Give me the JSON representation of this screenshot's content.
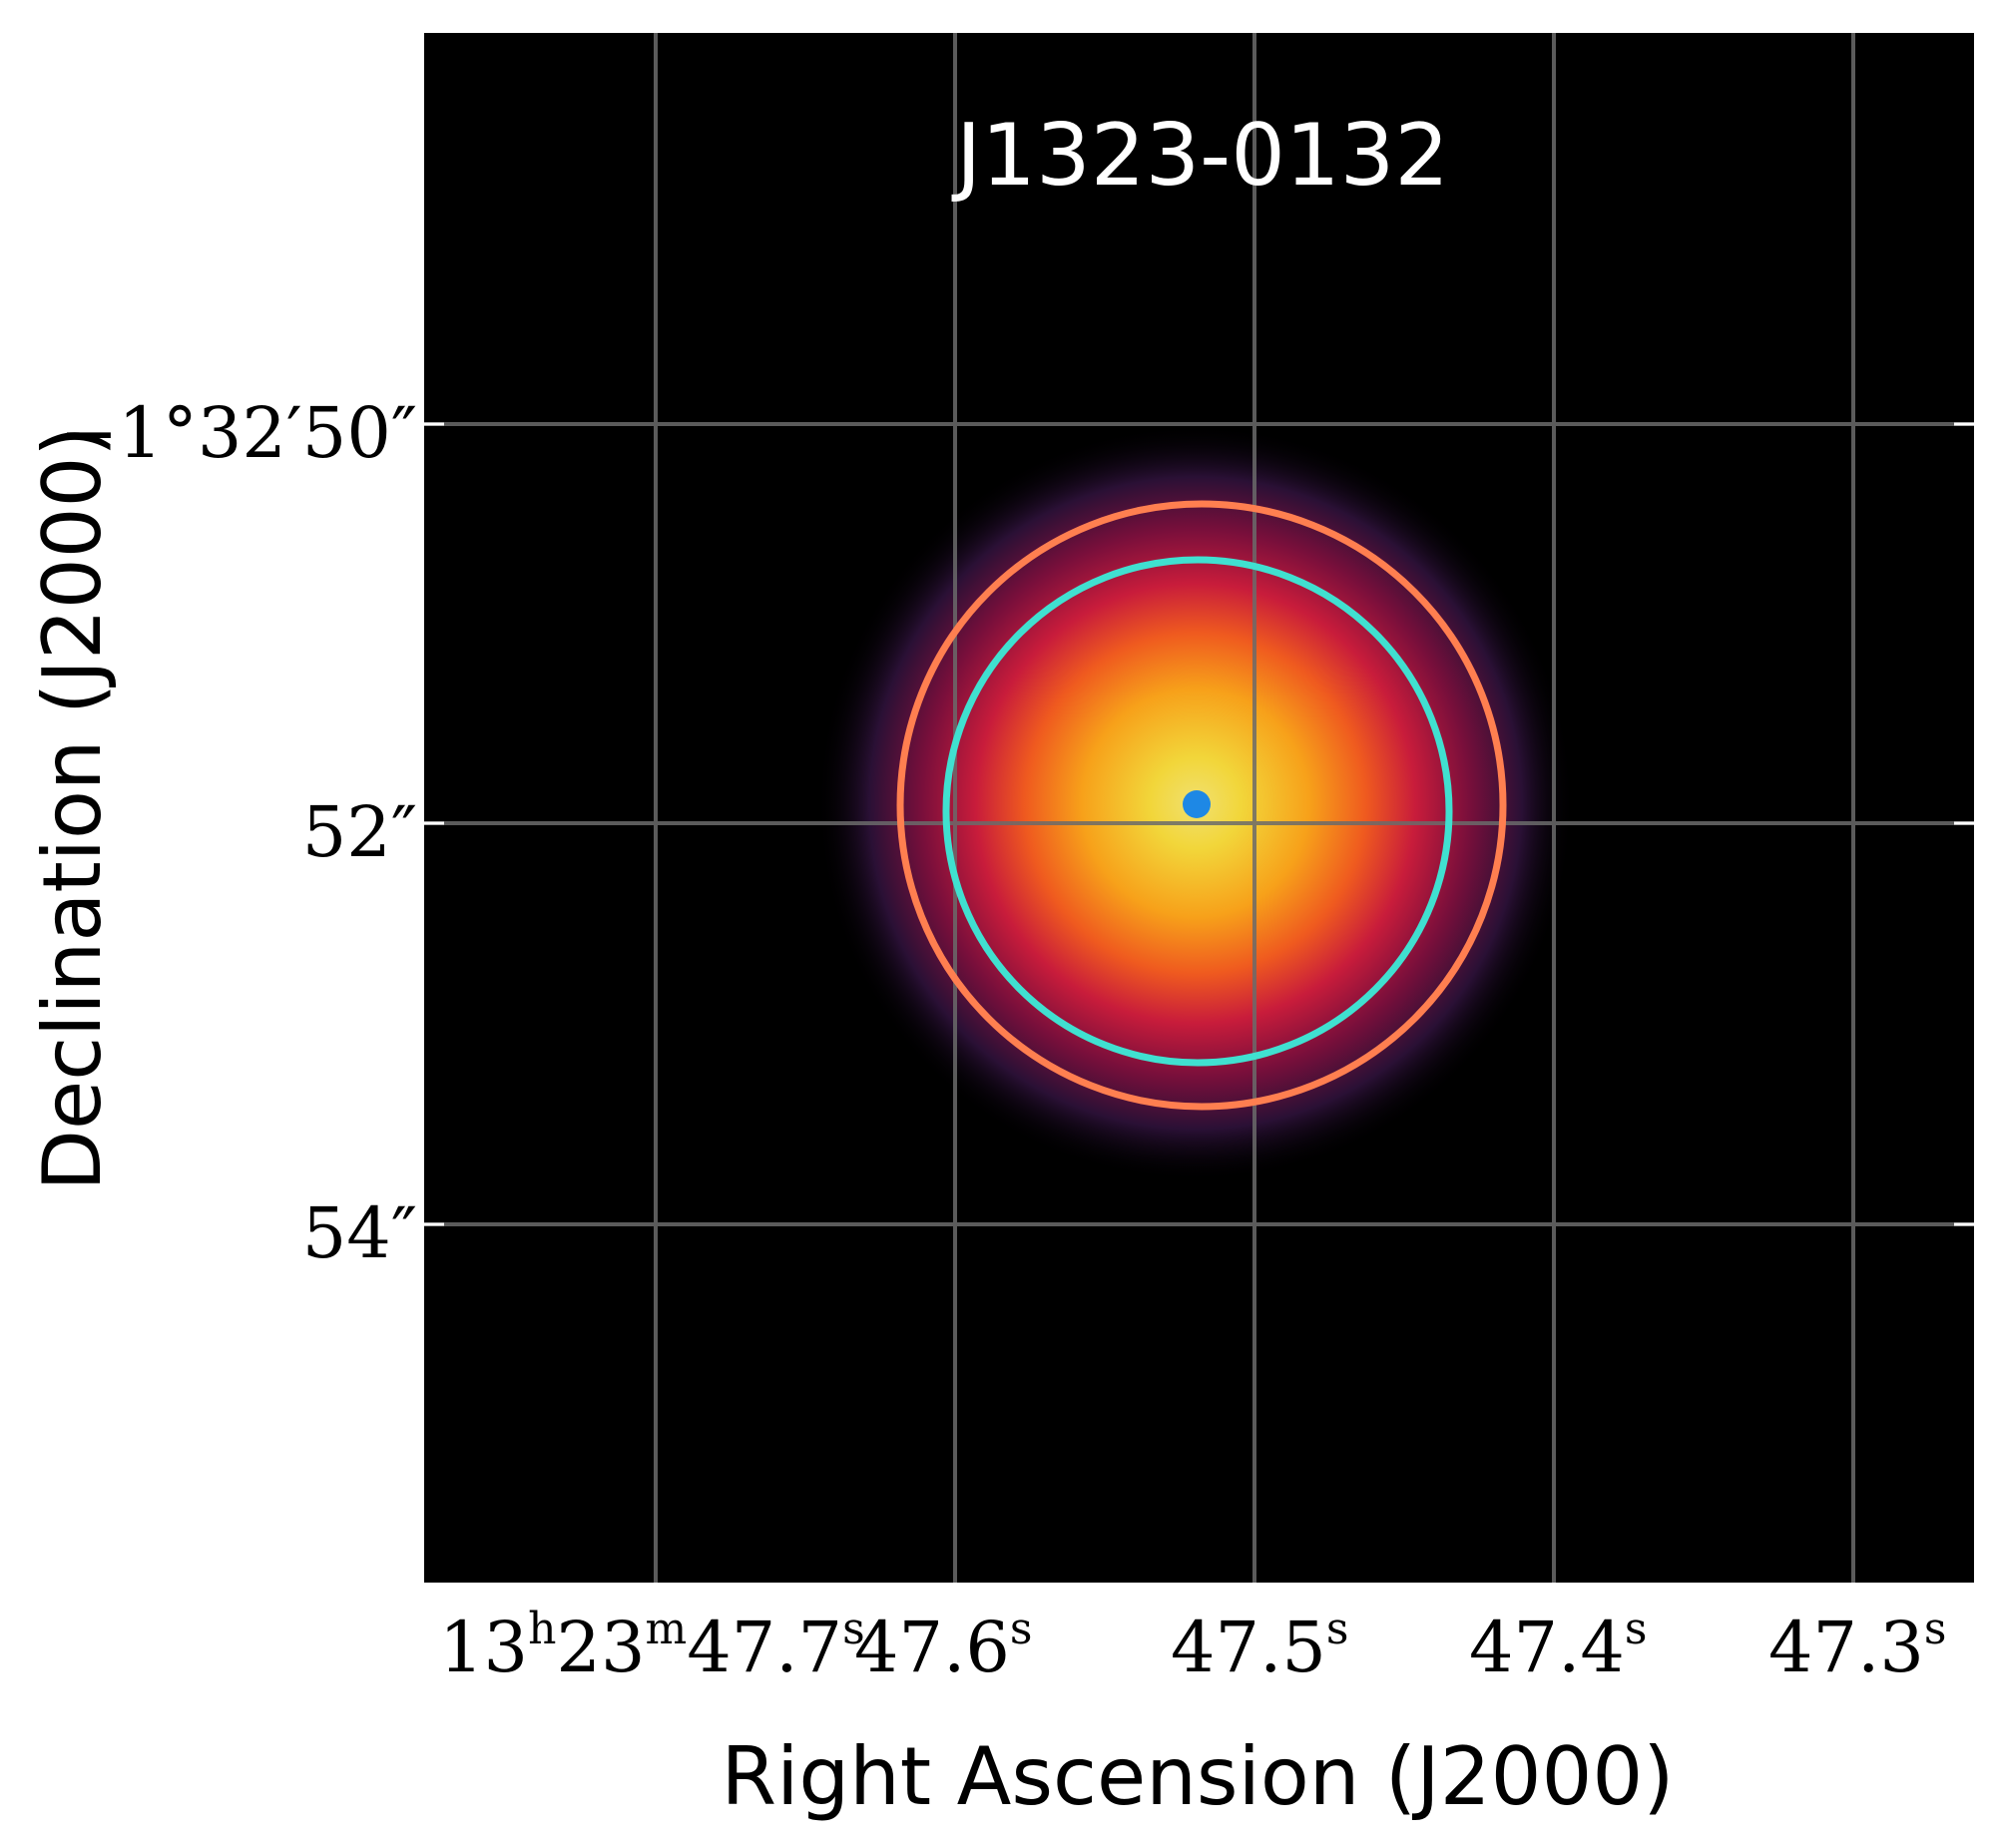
{
  "figure": {
    "title": "J1323-0132",
    "xlabel": "Right Ascension (J2000)",
    "ylabel": "Declination (J2000)",
    "x_ticks": [
      {
        "h": "13",
        "hsup": "h",
        "m": "23",
        "msup": "m",
        "s": "47.7",
        "ssup": "s"
      },
      {
        "s": "47.6",
        "ssup": "s"
      },
      {
        "s": "47.5",
        "ssup": "s"
      },
      {
        "s": "47.4",
        "ssup": "s"
      },
      {
        "s": "47.3",
        "ssup": "s"
      }
    ],
    "y_ticks": [
      "−1°32′50″",
      "52″",
      "54″"
    ],
    "colors": {
      "background": "#000000",
      "grid": "#6b6b6b",
      "outer_aperture": "#ff7f50",
      "inner_aperture": "#40e0d0",
      "center_marker": "#1e88e5",
      "colormap": [
        "#000000",
        "#2a1035",
        "#7a0f3b",
        "#c81c3b",
        "#ef5a1f",
        "#f7a11a",
        "#f2d63a",
        "#e8e070"
      ]
    }
  }
}
